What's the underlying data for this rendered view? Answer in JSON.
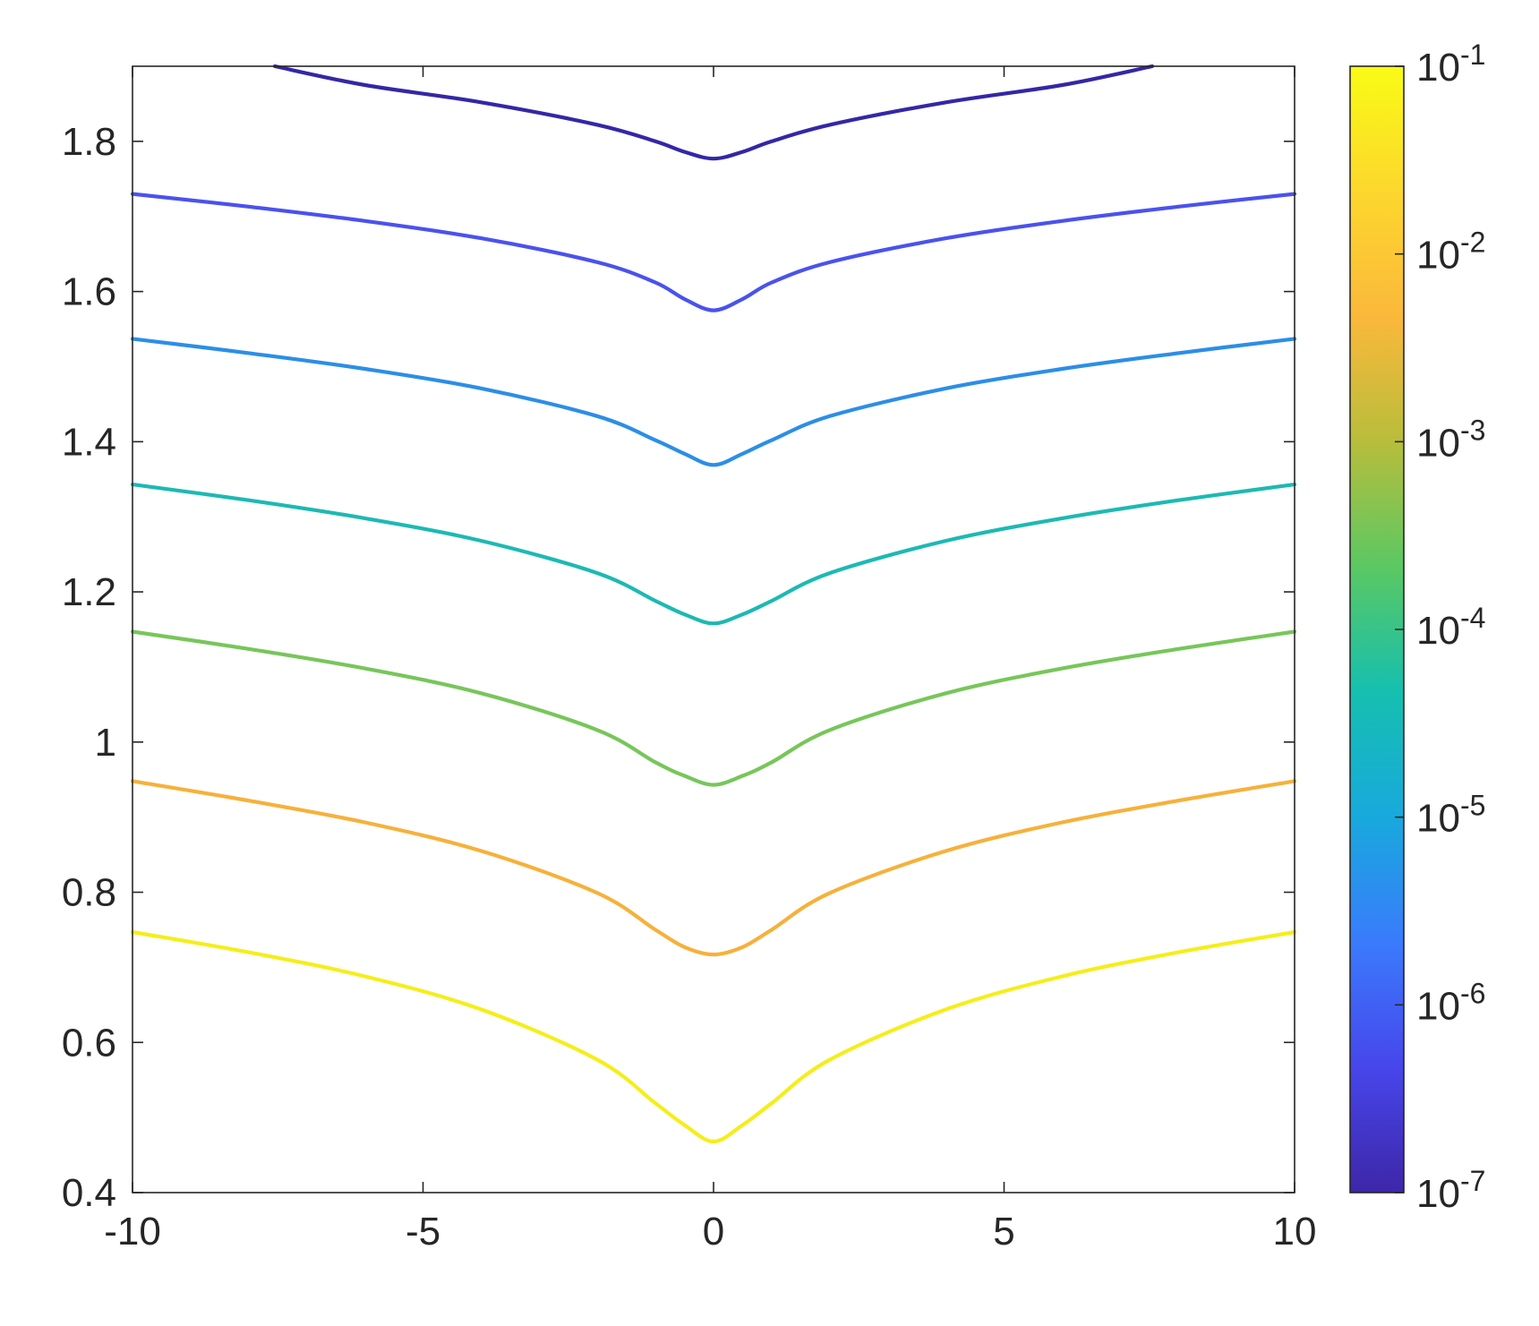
{
  "chart_data": {
    "type": "line",
    "title": "",
    "xlabel": "",
    "ylabel": "",
    "xlim": [
      -10,
      10
    ],
    "ylim": [
      0.4,
      1.9
    ],
    "x_ticks": [
      -10,
      -5,
      0,
      5,
      10
    ],
    "x_tick_labels": [
      "-10",
      "-5",
      "0",
      "5",
      "10"
    ],
    "y_ticks": [
      0.4,
      0.6,
      0.8,
      1,
      1.2,
      1.4,
      1.6,
      1.8
    ],
    "y_tick_labels": [
      "0.4",
      "0.6",
      "0.8",
      "1",
      "1.2",
      "1.4",
      "1.6",
      "1.8"
    ],
    "grid": false,
    "legend": "none",
    "series": [
      {
        "color": "#3427a6",
        "x": [
          -7.55,
          -6,
          -4,
          -2,
          -1,
          -0.5,
          0,
          0.5,
          1,
          2,
          4,
          6,
          7.55
        ],
        "y": [
          1.9,
          1.875,
          1.852,
          1.822,
          1.8,
          1.786,
          1.777,
          1.786,
          1.8,
          1.822,
          1.852,
          1.875,
          1.9
        ]
      },
      {
        "color": "#4a52ee",
        "x": [
          -10,
          -8,
          -6,
          -4,
          -2,
          -1,
          -0.5,
          0,
          0.5,
          1,
          2,
          4,
          6,
          8,
          10
        ],
        "y": [
          1.73,
          1.713,
          1.694,
          1.671,
          1.639,
          1.612,
          1.59,
          1.575,
          1.59,
          1.612,
          1.639,
          1.671,
          1.694,
          1.713,
          1.73
        ]
      },
      {
        "color": "#2c8ee6",
        "x": [
          -10,
          -8,
          -6,
          -4,
          -2,
          -1,
          -0.5,
          0,
          0.5,
          1,
          2,
          4,
          6,
          8,
          10
        ],
        "y": [
          1.537,
          1.518,
          1.497,
          1.471,
          1.434,
          1.402,
          1.384,
          1.369,
          1.384,
          1.402,
          1.434,
          1.471,
          1.497,
          1.518,
          1.537
        ]
      },
      {
        "color": "#1db9b4",
        "x": [
          -10,
          -8,
          -6,
          -4,
          -2,
          -1,
          -0.5,
          0,
          0.5,
          1,
          2,
          4,
          6,
          8,
          10
        ],
        "y": [
          1.343,
          1.322,
          1.298,
          1.268,
          1.225,
          1.188,
          1.17,
          1.158,
          1.17,
          1.188,
          1.225,
          1.268,
          1.298,
          1.322,
          1.343
        ]
      },
      {
        "color": "#77c65a",
        "x": [
          -10,
          -8,
          -6,
          -4,
          -2,
          -1,
          -0.5,
          0,
          0.5,
          1,
          2,
          4,
          6,
          8,
          10
        ],
        "y": [
          1.147,
          1.124,
          1.098,
          1.065,
          1.016,
          0.973,
          0.955,
          0.943,
          0.955,
          0.973,
          1.016,
          1.065,
          1.098,
          1.124,
          1.147
        ]
      },
      {
        "color": "#f6b13b",
        "x": [
          -10,
          -8,
          -6,
          -4,
          -2,
          -1,
          -0.5,
          0,
          0.5,
          1,
          2,
          4,
          6,
          8,
          10
        ],
        "y": [
          0.948,
          0.922,
          0.893,
          0.855,
          0.799,
          0.75,
          0.727,
          0.717,
          0.727,
          0.75,
          0.799,
          0.855,
          0.893,
          0.922,
          0.948
        ]
      },
      {
        "color": "#f5ee1a",
        "x": [
          -10,
          -8,
          -6,
          -4,
          -2,
          -1,
          -0.5,
          0,
          0.5,
          1,
          2,
          4,
          6,
          8,
          10
        ],
        "y": [
          0.747,
          0.72,
          0.688,
          0.644,
          0.577,
          0.519,
          0.49,
          0.468,
          0.49,
          0.519,
          0.577,
          0.644,
          0.688,
          0.72,
          0.747
        ]
      }
    ],
    "colorbar": {
      "scale": "log",
      "range": [
        1e-07,
        0.1
      ],
      "tick_labels": [
        {
          "base": "10",
          "exp": "-7"
        },
        {
          "base": "10",
          "exp": "-6"
        },
        {
          "base": "10",
          "exp": "-5"
        },
        {
          "base": "10",
          "exp": "-4"
        },
        {
          "base": "10",
          "exp": "-3"
        },
        {
          "base": "10",
          "exp": "-2"
        },
        {
          "base": "10",
          "exp": "-1"
        }
      ],
      "colors": [
        "#3e26a8",
        "#4746eb",
        "#3a7bfc",
        "#18a9dd",
        "#15bfaf",
        "#5bc863",
        "#b8bd3b",
        "#fbb83b",
        "#fcd72d",
        "#f9fb15"
      ]
    }
  }
}
